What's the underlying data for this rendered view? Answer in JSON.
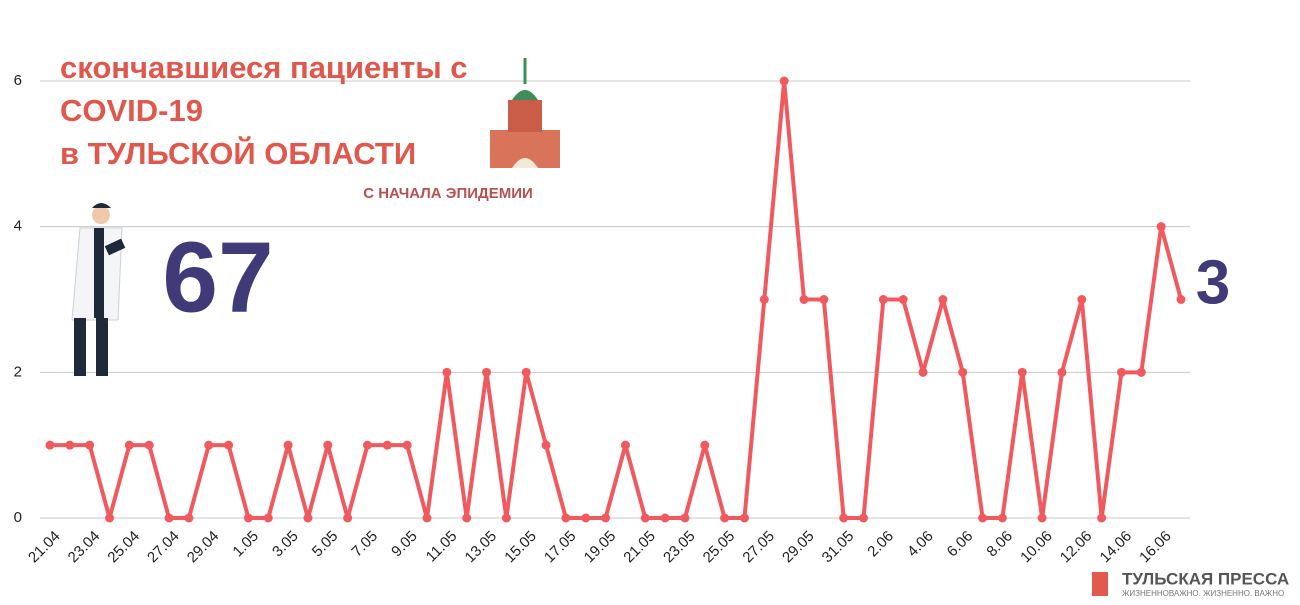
{
  "chart_data": {
    "type": "line",
    "title": [
      "скончавшиеся пациенты с",
      "COVID-19",
      "в ТУЛЬСКОЙ ОБЛАСТИ"
    ],
    "subtitle": "С НАЧАЛА ЭПИДЕМИИ",
    "total": 67,
    "categories": [
      "21.04",
      null,
      "23.04",
      null,
      "25.04",
      null,
      "27.04",
      null,
      "29.04",
      null,
      "1.05",
      null,
      "3.05",
      null,
      "5.05",
      null,
      "7.05",
      null,
      "9.05",
      null,
      "11.05",
      null,
      "13.05",
      null,
      "15.05",
      null,
      "17.05",
      null,
      "19.05",
      null,
      "21.05",
      null,
      "23.05",
      null,
      "25.05",
      null,
      "27.05",
      null,
      "29.05",
      null,
      "31.05",
      null,
      "2.06",
      null,
      "4.06",
      null,
      "6.06",
      null,
      "8.06",
      null,
      "10.06",
      null,
      "12.06",
      null,
      "14.06",
      null,
      "16.06",
      null
    ],
    "series": [
      {
        "color": "#f05a5e",
        "values": [
          1,
          1,
          1,
          0,
          1,
          1,
          0,
          0,
          1,
          1,
          0,
          0,
          1,
          0,
          1,
          0,
          1,
          1,
          1,
          0,
          2,
          0,
          2,
          0,
          2,
          1,
          0,
          0,
          0,
          1,
          0,
          0,
          0,
          1,
          0,
          0,
          3,
          6,
          3,
          3,
          0,
          0,
          3,
          3,
          2,
          3,
          2,
          0,
          0,
          2,
          0,
          2,
          3,
          0,
          2,
          2,
          4,
          3
        ]
      }
    ],
    "ylim": [
      0,
      6
    ],
    "yticks": [
      0,
      2,
      4,
      6
    ],
    "grid": true
  },
  "logo": {
    "name": "ТУЛЬСКАЯ ПРЕССА",
    "slogan": "ЖИЗНЕННОВАЖНО. ЖИЗНЕННО. ВАЖНО"
  }
}
